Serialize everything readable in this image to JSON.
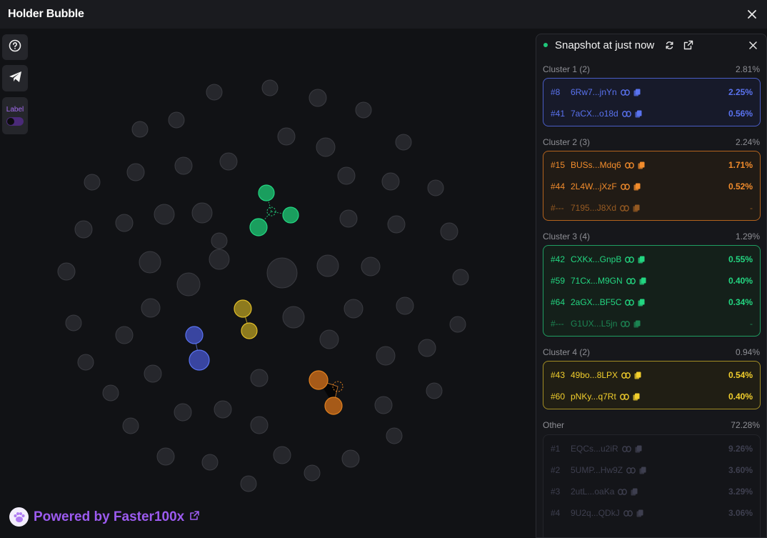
{
  "window": {
    "title": "Holder Bubble"
  },
  "toolbar": {
    "label_toggle_text": "Label"
  },
  "footer": {
    "powered_by": "Powered by Faster100x"
  },
  "panel": {
    "snapshot_text": "Snapshot at just now",
    "clusters": [
      {
        "name": "Cluster 1 (2)",
        "percent": "2.81%",
        "color": "#5a73f0",
        "border": "#4a5dc6",
        "bg": "#171a2a",
        "rows": [
          {
            "rank": "#8",
            "address": "6Rw7...jnYn",
            "percent": "2.25%"
          },
          {
            "rank": "#41",
            "address": "7aCX...o18d",
            "percent": "0.56%"
          }
        ]
      },
      {
        "name": "Cluster 2 (3)",
        "percent": "2.24%",
        "color": "#f28c2c",
        "border": "#b3631d",
        "bg": "#211b15",
        "rows": [
          {
            "rank": "#15",
            "address": "BUSs...Mdq6",
            "percent": "1.71%"
          },
          {
            "rank": "#44",
            "address": "2L4W...jXzF",
            "percent": "0.52%"
          },
          {
            "rank": "#---",
            "address": "7195...J8Xd",
            "percent": "-"
          }
        ]
      },
      {
        "name": "Cluster 3 (4)",
        "percent": "1.29%",
        "color": "#23d681",
        "border": "#1f9e62",
        "bg": "#14201a",
        "rows": [
          {
            "rank": "#42",
            "address": "CXKx...GnpB",
            "percent": "0.55%"
          },
          {
            "rank": "#59",
            "address": "71Cx...M9GN",
            "percent": "0.40%"
          },
          {
            "rank": "#64",
            "address": "2aGX...BF5C",
            "percent": "0.34%"
          },
          {
            "rank": "#---",
            "address": "G1UX...L5jn",
            "percent": "-"
          }
        ]
      },
      {
        "name": "Cluster 4 (2)",
        "percent": "0.94%",
        "color": "#f2cf2c",
        "border": "#a28d24",
        "bg": "#201e14",
        "rows": [
          {
            "rank": "#43",
            "address": "49bo...8LPX",
            "percent": "0.54%"
          },
          {
            "rank": "#60",
            "address": "pNKy...q7Rt",
            "percent": "0.40%"
          }
        ]
      }
    ],
    "other": {
      "name": "Other",
      "percent": "72.28%",
      "rows": [
        {
          "rank": "#1",
          "address": "EQCs...u2iR",
          "percent": "9.26%"
        },
        {
          "rank": "#2",
          "address": "5UMP...Hw9Z",
          "percent": "3.60%"
        },
        {
          "rank": "#3",
          "address": "2utL...oaKa",
          "percent": "3.29%"
        },
        {
          "rank": "#4",
          "address": "9U2q...QDkJ",
          "percent": "3.06%"
        }
      ]
    }
  }
}
